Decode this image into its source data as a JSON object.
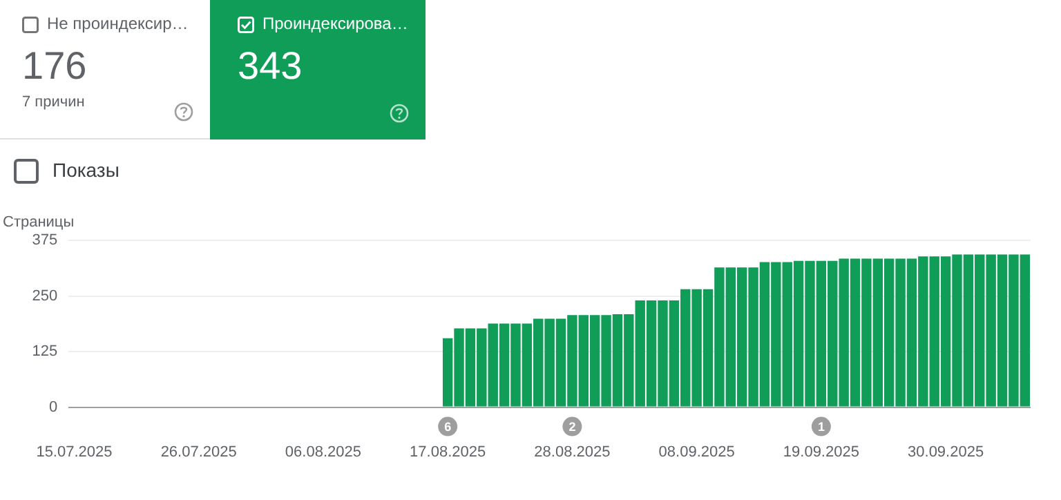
{
  "chart_data": [
    {
      "type": "other",
      "annotations": [
        "Не проиндексир…",
        "176",
        "7 причин",
        "Проиндексирова…",
        "343",
        "Показы"
      ]
    },
    {
      "type": "bar",
      "ylabel": "Страницы",
      "color": "#0f9d58",
      "categories": [
        "15.07.2025",
        null,
        null,
        null,
        null,
        null,
        null,
        null,
        null,
        null,
        null,
        "26.07.2025",
        null,
        null,
        null,
        null,
        null,
        null,
        null,
        null,
        null,
        null,
        "06.08.2025",
        null,
        null,
        null,
        null,
        null,
        null,
        null,
        null,
        null,
        null,
        "17.08.2025",
        null,
        null,
        null,
        null,
        null,
        null,
        null,
        null,
        null,
        null,
        "28.08.2025",
        null,
        null,
        null,
        null,
        null,
        null,
        null,
        null,
        null,
        null,
        "08.09.2025",
        null,
        null,
        null,
        null,
        null,
        null,
        null,
        null,
        null,
        null,
        "19.09.2025",
        null,
        null,
        null,
        null,
        null,
        null,
        null,
        null,
        null,
        null,
        "30.09.2025",
        null,
        null,
        null,
        null,
        null,
        null,
        null
      ],
      "values": [
        null,
        null,
        null,
        null,
        null,
        null,
        null,
        null,
        null,
        null,
        null,
        null,
        null,
        null,
        null,
        null,
        null,
        null,
        null,
        null,
        null,
        null,
        null,
        null,
        null,
        null,
        null,
        null,
        null,
        null,
        null,
        null,
        null,
        155,
        177,
        177,
        177,
        188,
        188,
        188,
        188,
        199,
        199,
        199,
        207,
        207,
        207,
        207,
        209,
        209,
        240,
        240,
        240,
        240,
        265,
        265,
        265,
        314,
        314,
        314,
        314,
        326,
        326,
        326,
        329,
        329,
        329,
        329,
        334,
        334,
        334,
        334,
        334,
        334,
        334,
        339,
        339,
        339,
        343,
        343,
        343,
        343,
        343,
        343,
        343
      ],
      "ylim": [
        0,
        375
      ],
      "yticks": [
        0,
        125,
        250,
        375
      ],
      "grid": "y",
      "legend": false,
      "annotations": [
        "6",
        "2",
        "1"
      ]
    }
  ]
}
